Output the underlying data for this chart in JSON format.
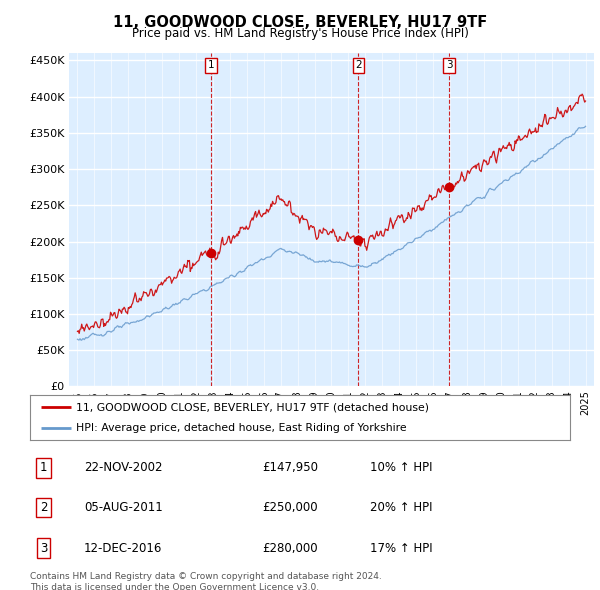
{
  "title": "11, GOODWOOD CLOSE, BEVERLEY, HU17 9TF",
  "subtitle": "Price paid vs. HM Land Registry's House Price Index (HPI)",
  "ylabel_ticks": [
    "£0",
    "£50K",
    "£100K",
    "£150K",
    "£200K",
    "£250K",
    "£300K",
    "£350K",
    "£400K",
    "£450K"
  ],
  "ytick_values": [
    0,
    50000,
    100000,
    150000,
    200000,
    250000,
    300000,
    350000,
    400000,
    450000
  ],
  "ylim": [
    0,
    460000
  ],
  "xlim_start": 1994.5,
  "xlim_end": 2025.5,
  "background_color": "#ddeeff",
  "hpi_line_color": "#6699cc",
  "price_line_color": "#cc0000",
  "vline_color": "#cc0000",
  "transaction_markers": [
    {
      "year": 2002.9,
      "price": 147950,
      "label": "1"
    },
    {
      "year": 2011.59,
      "price": 250000,
      "label": "2"
    },
    {
      "year": 2016.95,
      "price": 280000,
      "label": "3"
    }
  ],
  "legend_entries": [
    "11, GOODWOOD CLOSE, BEVERLEY, HU17 9TF (detached house)",
    "HPI: Average price, detached house, East Riding of Yorkshire"
  ],
  "table_rows": [
    {
      "num": "1",
      "date": "22-NOV-2002",
      "price": "£147,950",
      "hpi": "10% ↑ HPI"
    },
    {
      "num": "2",
      "date": "05-AUG-2011",
      "price": "£250,000",
      "hpi": "20% ↑ HPI"
    },
    {
      "num": "3",
      "date": "12-DEC-2016",
      "price": "£280,000",
      "hpi": "17% ↑ HPI"
    }
  ],
  "footnote": "Contains HM Land Registry data © Crown copyright and database right 2024.\nThis data is licensed under the Open Government Licence v3.0.",
  "xtick_years": [
    1995,
    1996,
    1997,
    1998,
    1999,
    2000,
    2001,
    2002,
    2003,
    2004,
    2005,
    2006,
    2007,
    2008,
    2009,
    2010,
    2011,
    2012,
    2013,
    2014,
    2015,
    2016,
    2017,
    2018,
    2019,
    2020,
    2021,
    2022,
    2023,
    2024,
    2025
  ]
}
